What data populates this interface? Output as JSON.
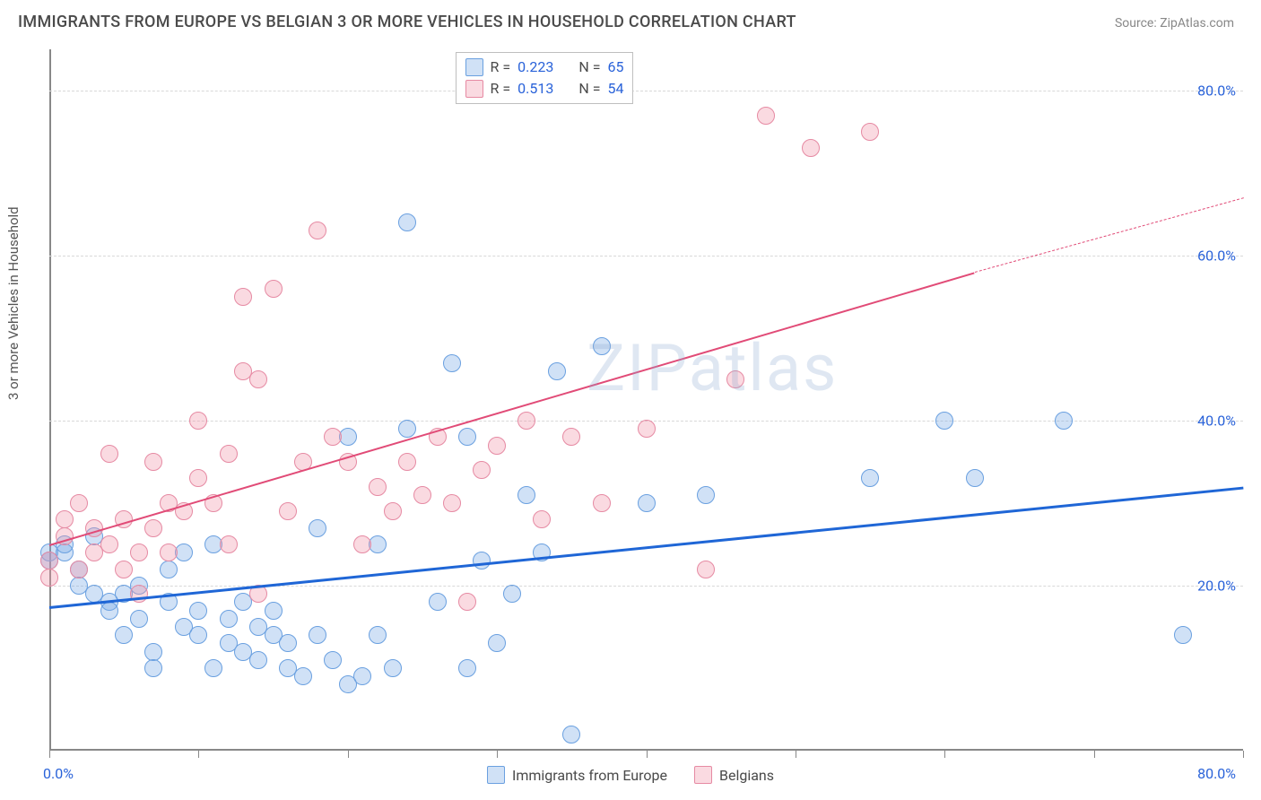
{
  "title": "IMMIGRANTS FROM EUROPE VS BELGIAN 3 OR MORE VEHICLES IN HOUSEHOLD CORRELATION CHART",
  "source": "Source: ZipAtlas.com",
  "watermark": "ZIPatlas",
  "chart": {
    "type": "scatter",
    "background_color": "#ffffff",
    "grid_color": "#d8d8d8",
    "axis_color": "#888888",
    "ylabel": "3 or more Vehicles in Household",
    "label_fontsize": 15,
    "label_color": "#555555",
    "tick_label_color": "#2962d9",
    "tick_fontsize": 16,
    "xlim": [
      0,
      80
    ],
    "ylim": [
      0,
      85
    ],
    "x_ticks": [
      0,
      10,
      20,
      30,
      40,
      50,
      60,
      70,
      80
    ],
    "y_gridlines": [
      20,
      40,
      60,
      80
    ],
    "y_tick_labels": [
      "20.0%",
      "40.0%",
      "60.0%",
      "80.0%"
    ],
    "x_origin_label": "0.0%",
    "x_max_label": "80.0%",
    "marker_radius": 10,
    "marker_stroke_width": 1.5,
    "series": [
      {
        "name": "Immigrants from Europe",
        "fill_color": "rgba(120,170,230,0.35)",
        "stroke_color": "#6aa0e0",
        "trend_color": "#1f66d6",
        "trend_width": 3,
        "trend": {
          "x1": 0,
          "y1": 17.5,
          "x2": 80,
          "y2": 32
        },
        "R": "0.223",
        "N": "65",
        "points": [
          [
            0,
            24
          ],
          [
            0,
            23
          ],
          [
            1,
            24
          ],
          [
            1,
            25
          ],
          [
            2,
            22
          ],
          [
            2,
            20
          ],
          [
            3,
            19
          ],
          [
            3,
            26
          ],
          [
            4,
            18
          ],
          [
            4,
            17
          ],
          [
            5,
            19
          ],
          [
            5,
            14
          ],
          [
            6,
            20
          ],
          [
            6,
            16
          ],
          [
            7,
            12
          ],
          [
            7,
            10
          ],
          [
            8,
            18
          ],
          [
            8,
            22
          ],
          [
            9,
            15
          ],
          [
            9,
            24
          ],
          [
            10,
            14
          ],
          [
            10,
            17
          ],
          [
            11,
            10
          ],
          [
            11,
            25
          ],
          [
            12,
            13
          ],
          [
            12,
            16
          ],
          [
            13,
            12
          ],
          [
            13,
            18
          ],
          [
            14,
            15
          ],
          [
            14,
            11
          ],
          [
            15,
            14
          ],
          [
            15,
            17
          ],
          [
            16,
            10
          ],
          [
            16,
            13
          ],
          [
            17,
            9
          ],
          [
            18,
            14
          ],
          [
            18,
            27
          ],
          [
            19,
            11
          ],
          [
            20,
            8
          ],
          [
            20,
            38
          ],
          [
            21,
            9
          ],
          [
            22,
            14
          ],
          [
            22,
            25
          ],
          [
            23,
            10
          ],
          [
            24,
            39
          ],
          [
            24,
            64
          ],
          [
            26,
            18
          ],
          [
            27,
            47
          ],
          [
            28,
            10
          ],
          [
            28,
            38
          ],
          [
            29,
            23
          ],
          [
            30,
            13
          ],
          [
            31,
            19
          ],
          [
            32,
            31
          ],
          [
            33,
            24
          ],
          [
            34,
            46
          ],
          [
            35,
            2
          ],
          [
            37,
            49
          ],
          [
            40,
            30
          ],
          [
            44,
            31
          ],
          [
            55,
            33
          ],
          [
            60,
            40
          ],
          [
            62,
            33
          ],
          [
            68,
            40
          ],
          [
            76,
            14
          ]
        ]
      },
      {
        "name": "Belgians",
        "fill_color": "rgba(240,150,170,0.35)",
        "stroke_color": "#e68aa3",
        "trend_color": "#e14b77",
        "trend_width": 2.5,
        "trend": {
          "x1": 0,
          "y1": 25,
          "x2": 62,
          "y2": 58
        },
        "trend_dashed_extension": {
          "x1": 62,
          "y1": 58,
          "x2": 80,
          "y2": 67
        },
        "R": "0.513",
        "N": "54",
        "points": [
          [
            0,
            23
          ],
          [
            0,
            21
          ],
          [
            1,
            26
          ],
          [
            1,
            28
          ],
          [
            2,
            22
          ],
          [
            2,
            30
          ],
          [
            3,
            24
          ],
          [
            3,
            27
          ],
          [
            4,
            25
          ],
          [
            4,
            36
          ],
          [
            5,
            22
          ],
          [
            5,
            28
          ],
          [
            6,
            24
          ],
          [
            6,
            19
          ],
          [
            7,
            35
          ],
          [
            7,
            27
          ],
          [
            8,
            24
          ],
          [
            8,
            30
          ],
          [
            9,
            29
          ],
          [
            10,
            33
          ],
          [
            10,
            40
          ],
          [
            11,
            30
          ],
          [
            12,
            25
          ],
          [
            12,
            36
          ],
          [
            13,
            46
          ],
          [
            13,
            55
          ],
          [
            14,
            19
          ],
          [
            14,
            45
          ],
          [
            15,
            56
          ],
          [
            16,
            29
          ],
          [
            17,
            35
          ],
          [
            18,
            63
          ],
          [
            19,
            38
          ],
          [
            20,
            35
          ],
          [
            21,
            25
          ],
          [
            22,
            32
          ],
          [
            23,
            29
          ],
          [
            24,
            35
          ],
          [
            25,
            31
          ],
          [
            26,
            38
          ],
          [
            27,
            30
          ],
          [
            28,
            18
          ],
          [
            29,
            34
          ],
          [
            30,
            37
          ],
          [
            32,
            40
          ],
          [
            33,
            28
          ],
          [
            35,
            38
          ],
          [
            37,
            30
          ],
          [
            40,
            39
          ],
          [
            44,
            22
          ],
          [
            46,
            45
          ],
          [
            48,
            77
          ],
          [
            51,
            73
          ],
          [
            55,
            75
          ]
        ]
      }
    ],
    "legend_top": {
      "border_color": "#bfbfbf",
      "bg_color": "#ffffff",
      "r_label": "R =",
      "n_label": "N ="
    },
    "legend_bottom_labels": [
      "Immigrants from Europe",
      "Belgians"
    ]
  }
}
